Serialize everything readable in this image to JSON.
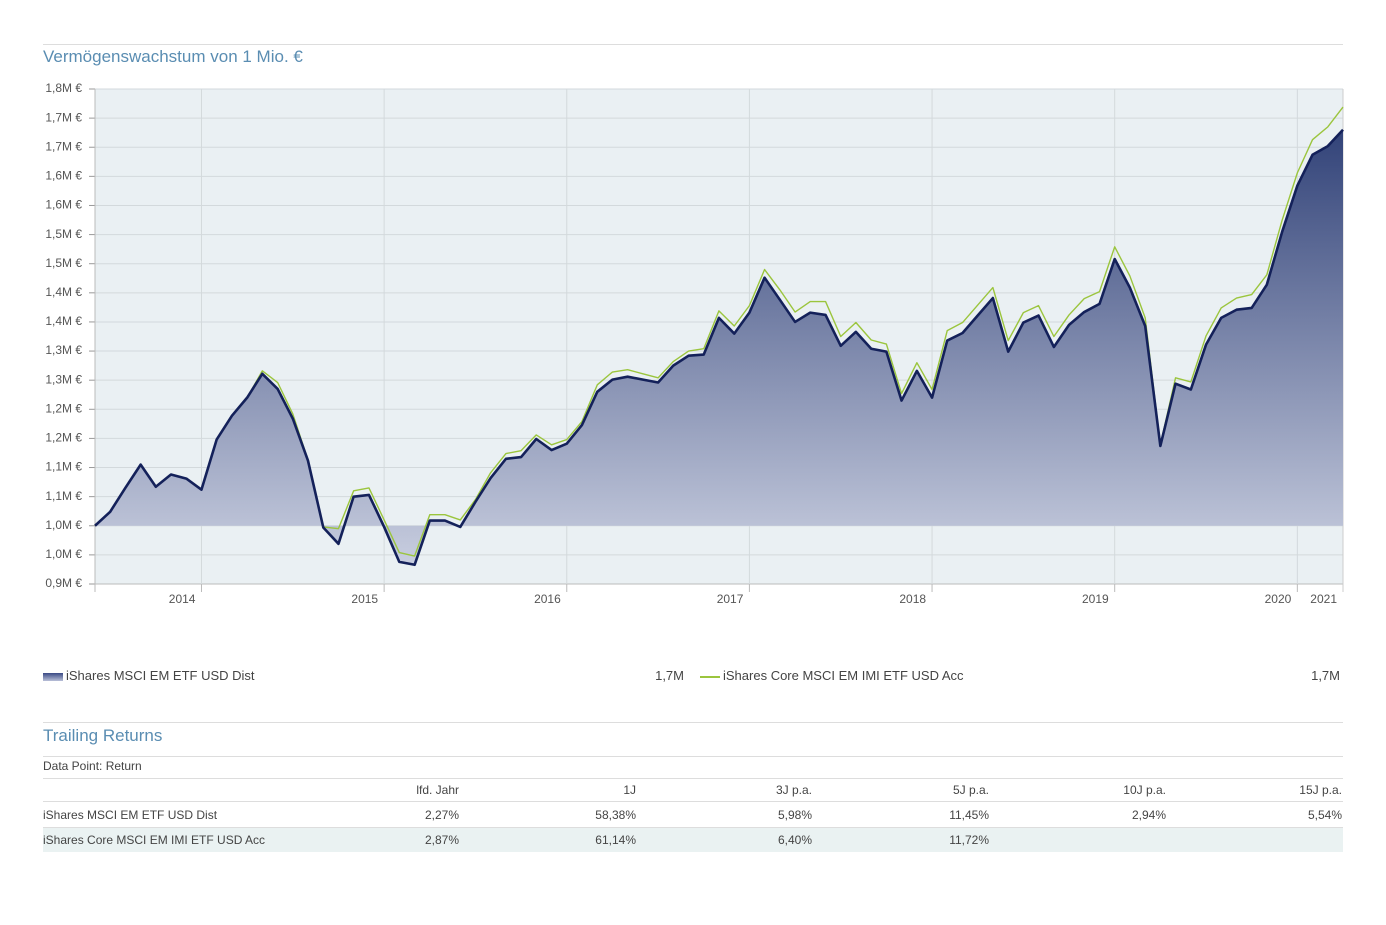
{
  "chart_data": {
    "type": "area",
    "title": "Vermögenswachstum von 1 Mio. €",
    "x": [
      2014.417,
      2014.5,
      2014.583,
      2014.667,
      2014.75,
      2014.833,
      2014.917,
      2015,
      2015.083,
      2015.167,
      2015.25,
      2015.333,
      2015.417,
      2015.5,
      2015.583,
      2015.667,
      2015.75,
      2015.833,
      2015.917,
      2016,
      2016.083,
      2016.167,
      2016.25,
      2016.333,
      2016.417,
      2016.5,
      2016.583,
      2016.667,
      2016.75,
      2016.833,
      2016.917,
      2017,
      2017.083,
      2017.167,
      2017.25,
      2017.333,
      2017.417,
      2017.5,
      2017.583,
      2017.667,
      2017.75,
      2017.833,
      2017.917,
      2018,
      2018.083,
      2018.167,
      2018.25,
      2018.333,
      2018.417,
      2018.5,
      2018.583,
      2018.667,
      2018.75,
      2018.833,
      2018.917,
      2019,
      2019.083,
      2019.167,
      2019.25,
      2019.333,
      2019.417,
      2019.5,
      2019.583,
      2019.667,
      2019.75,
      2019.833,
      2019.917,
      2020,
      2020.083,
      2020.167,
      2020.25,
      2020.333,
      2020.417,
      2020.5,
      2020.583,
      2020.667,
      2020.75,
      2020.833,
      2020.917,
      2021,
      2021.083,
      2021.167,
      2021.25
    ],
    "xlim": [
      2014.417,
      2021.25
    ],
    "xticks": [
      2014,
      2015,
      2016,
      2017,
      2018,
      2019,
      2020,
      2021
    ],
    "ylim": [
      900000,
      1750000
    ],
    "yticks": [
      {
        "value": 1750000,
        "label": "1,8M €"
      },
      {
        "value": 1700000,
        "label": "1,7M €"
      },
      {
        "value": 1650000,
        "label": "1,7M €"
      },
      {
        "value": 1600000,
        "label": "1,6M €"
      },
      {
        "value": 1550000,
        "label": "1,6M €"
      },
      {
        "value": 1500000,
        "label": "1,5M €"
      },
      {
        "value": 1450000,
        "label": "1,5M €"
      },
      {
        "value": 1400000,
        "label": "1,4M €"
      },
      {
        "value": 1350000,
        "label": "1,4M €"
      },
      {
        "value": 1300000,
        "label": "1,3M €"
      },
      {
        "value": 1250000,
        "label": "1,3M €"
      },
      {
        "value": 1200000,
        "label": "1,2M €"
      },
      {
        "value": 1150000,
        "label": "1,2M €"
      },
      {
        "value": 1100000,
        "label": "1,1M €"
      },
      {
        "value": 1050000,
        "label": "1,1M €"
      },
      {
        "value": 1000000,
        "label": "1,0M €"
      },
      {
        "value": 950000,
        "label": "1,0M €"
      },
      {
        "value": 900000,
        "label": "0,9M €"
      }
    ],
    "grid": true,
    "series": [
      {
        "name": "iShares MSCI EM ETF USD Dist",
        "color": "#14215a",
        "area": true,
        "last_label": "1,7M",
        "values": [
          1000000,
          1024000,
          1065000,
          1105000,
          1067000,
          1088000,
          1081000,
          1062000,
          1148000,
          1189000,
          1220000,
          1261000,
          1235000,
          1184000,
          1112000,
          997000,
          969000,
          1050000,
          1053000,
          998000,
          938000,
          933000,
          1009000,
          1009000,
          998000,
          1041000,
          1082000,
          1115000,
          1118000,
          1149000,
          1130000,
          1141000,
          1173000,
          1230000,
          1251000,
          1256000,
          1251000,
          1246000,
          1275000,
          1292000,
          1294000,
          1357000,
          1330000,
          1366000,
          1426000,
          1388000,
          1350000,
          1366000,
          1362000,
          1309000,
          1333000,
          1304000,
          1299000,
          1215000,
          1266000,
          1220000,
          1318000,
          1331000,
          1361000,
          1391000,
          1299000,
          1349000,
          1361000,
          1307000,
          1345000,
          1367000,
          1381000,
          1458000,
          1409000,
          1343000,
          1137000,
          1244000,
          1234000,
          1311000,
          1357000,
          1371000,
          1374000,
          1414000,
          1505000,
          1584000,
          1637000,
          1652000,
          1680000
        ]
      },
      {
        "name": "iShares Core MSCI EM IMI ETF USD Acc",
        "color": "#9bc53d",
        "area": false,
        "last_label": "1,7M",
        "values": [
          1000000,
          1024000,
          1065000,
          1105000,
          1067000,
          1088000,
          1081000,
          1062000,
          1148000,
          1189000,
          1220000,
          1266000,
          1246000,
          1192000,
          1113000,
          998000,
          995000,
          1060000,
          1065000,
          1010000,
          954000,
          948000,
          1019000,
          1019000,
          1010000,
          1045000,
          1091000,
          1124000,
          1129000,
          1156000,
          1139000,
          1148000,
          1179000,
          1242000,
          1264000,
          1268000,
          1261000,
          1254000,
          1282000,
          1300000,
          1304000,
          1369000,
          1343000,
          1378000,
          1440000,
          1405000,
          1367000,
          1385000,
          1385000,
          1325000,
          1349000,
          1319000,
          1312000,
          1227000,
          1280000,
          1234000,
          1335000,
          1349000,
          1379000,
          1409000,
          1318000,
          1366000,
          1378000,
          1325000,
          1362000,
          1390000,
          1402000,
          1479000,
          1429000,
          1357000,
          1139000,
          1254000,
          1247000,
          1326000,
          1374000,
          1391000,
          1397000,
          1431000,
          1525000,
          1606000,
          1663000,
          1685000,
          1719000
        ]
      }
    ]
  },
  "table": {
    "title": "Trailing Returns",
    "note": "Data Point: Return",
    "columns": [
      "lfd. Jahr",
      "1J",
      "3J p.a.",
      "5J p.a.",
      "10J p.a.",
      "15J p.a."
    ],
    "rows": [
      {
        "name": "iShares MSCI EM ETF USD Dist",
        "cells": [
          "2,27%",
          "58,38%",
          "5,98%",
          "11,45%",
          "2,94%",
          "5,54%"
        ]
      },
      {
        "name": "iShares Core MSCI EM IMI ETF USD Acc",
        "cells": [
          "2,87%",
          "61,14%",
          "6,40%",
          "11,72%"
        ]
      }
    ]
  }
}
